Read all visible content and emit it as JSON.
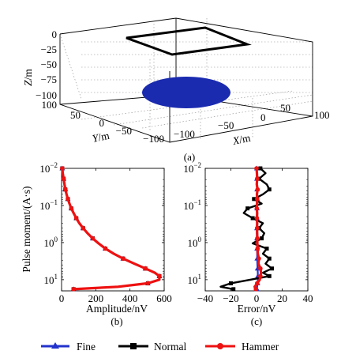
{
  "chart_data": [
    {
      "panel": "(a)",
      "type": "3d-scatter",
      "axes": {
        "x": {
          "label_var": "X",
          "label_unit": "/m",
          "ticks": [
            "−100",
            "−50",
            "0",
            "50",
            "100"
          ],
          "lim": [
            -100,
            100
          ]
        },
        "y": {
          "label_var": "Y",
          "label_unit": "/m",
          "ticks": [
            "100",
            "50",
            "0",
            "−50",
            "−100"
          ],
          "lim": [
            -100,
            100
          ]
        },
        "z": {
          "label_var": "Z",
          "label_unit": "/m",
          "ticks": [
            "0",
            "−25",
            "−50",
            "−75",
            "−100"
          ],
          "lim": [
            -100,
            0
          ]
        }
      },
      "objects": [
        {
          "kind": "square_loop",
          "z": 0,
          "x_range": [
            -50,
            50
          ],
          "y_range": [
            -50,
            50
          ],
          "color": "#000000"
        },
        {
          "kind": "disk",
          "z": -100,
          "radius": 50,
          "color": "#1a2bb0"
        }
      ],
      "grid": true
    },
    {
      "panel": "(b)",
      "type": "line",
      "xlabel": "Amplitude/nV",
      "ylabel": "Pulse moment/(A·s)",
      "xlim": [
        0,
        600
      ],
      "ylim_log": [
        0.01,
        20
      ],
      "y_reversed": true,
      "x_ticks": [
        "0",
        "200",
        "400",
        "600"
      ],
      "y_ticks": [
        {
          "base": "10",
          "exp": "−2",
          "value": 0.01
        },
        {
          "base": "10",
          "exp": "−1",
          "value": 0.1
        },
        {
          "base": "10",
          "exp": "0",
          "value": 1
        },
        {
          "base": "10",
          "exp": "1",
          "value": 10
        }
      ],
      "q": [
        0.01,
        0.0135,
        0.019,
        0.027,
        0.037,
        0.05,
        0.067,
        0.089,
        0.12,
        0.16,
        0.22,
        0.3,
        0.41,
        0.56,
        0.77,
        1.05,
        1.45,
        2.0,
        2.7,
        3.7,
        5.0,
        6.5,
        8.0,
        10.0,
        12.5,
        15.5,
        18.0
      ],
      "series": [
        {
          "name": "Fine",
          "color": "#2233cc",
          "marker": "triangle",
          "values": [
            4,
            7,
            12,
            17,
            22,
            29,
            37,
            46,
            57,
            70,
            86,
            104,
            126,
            152,
            182,
            216,
            256,
            305,
            360,
            425,
            490,
            545,
            572,
            572,
            505,
            330,
            70
          ]
        },
        {
          "name": "Normal",
          "color": "#000000",
          "marker": "square",
          "values": [
            4,
            7,
            12,
            17,
            22,
            29,
            37,
            46,
            57,
            70,
            86,
            104,
            126,
            152,
            182,
            216,
            256,
            305,
            360,
            425,
            490,
            545,
            572,
            572,
            505,
            330,
            70
          ]
        },
        {
          "name": "Hammer",
          "color": "#ee1111",
          "marker": "circle",
          "values": [
            4,
            7,
            12,
            17,
            22,
            29,
            37,
            46,
            57,
            70,
            86,
            104,
            126,
            152,
            182,
            216,
            256,
            305,
            360,
            425,
            490,
            545,
            572,
            572,
            505,
            330,
            70
          ]
        }
      ]
    },
    {
      "panel": "(c)",
      "type": "line",
      "xlabel": "Error/nV",
      "ylabel": "",
      "xlim": [
        -40,
        40
      ],
      "ylim_log": [
        0.01,
        20
      ],
      "y_reversed": true,
      "x_ticks": [
        "−40",
        "−20",
        "0",
        "20",
        "40"
      ],
      "y_ticks": [
        {
          "base": "10",
          "exp": "−2",
          "value": 0.01
        },
        {
          "base": "10",
          "exp": "−1",
          "value": 0.1
        },
        {
          "base": "10",
          "exp": "0",
          "value": 1
        },
        {
          "base": "10",
          "exp": "1",
          "value": 10
        }
      ],
      "q": [
        0.01,
        0.0135,
        0.019,
        0.027,
        0.037,
        0.05,
        0.067,
        0.089,
        0.12,
        0.16,
        0.22,
        0.3,
        0.41,
        0.56,
        0.77,
        1.05,
        1.45,
        2.0,
        2.7,
        3.7,
        5.0,
        6.5,
        8.0,
        10.0,
        12.5,
        15.5,
        18.0
      ],
      "series": [
        {
          "name": "Fine",
          "color": "#2233cc",
          "marker": "triangle",
          "values": [
            0.2,
            0.2,
            0.3,
            0.3,
            0.4,
            0.4,
            0.5,
            0.4,
            0.4,
            0.3,
            0.3,
            0.3,
            0.3,
            0.2,
            0.3,
            0.3,
            0.4,
            0.5,
            0.5,
            0.6,
            0.8,
            1.0,
            1.0,
            1.0,
            0.8,
            0.5,
            0.3
          ]
        },
        {
          "name": "Normal",
          "color": "#000000",
          "marker": "square",
          "values": [
            3,
            7,
            2,
            8,
            10,
            5,
            -2,
            4,
            -7,
            -10,
            -3,
            5,
            2,
            6,
            4,
            -3,
            8,
            5,
            10,
            7,
            12,
            5,
            10,
            -5,
            -20,
            -28,
            -18
          ]
        },
        {
          "name": "Hammer",
          "color": "#ee1111",
          "marker": "circle",
          "values": [
            0,
            0.3,
            0.5,
            0.2,
            0.8,
            0.3,
            0.5,
            0.4,
            0.2,
            0.5,
            0.3,
            0.5,
            0.4,
            0.5,
            0.6,
            0.6,
            0.8,
            1.0,
            1.8,
            1.5,
            3.0,
            3.5,
            3.0,
            2.5,
            0.5,
            -1.5,
            -0.5
          ]
        }
      ]
    }
  ],
  "captions": {
    "a": "(a)",
    "b": "(b)",
    "c": "(c)"
  },
  "legend": [
    {
      "name": "Fine",
      "color": "#2233cc",
      "marker": "triangle"
    },
    {
      "name": "Normal",
      "color": "#000000",
      "marker": "square"
    },
    {
      "name": "Hammer",
      "color": "#ee1111",
      "marker": "circle"
    }
  ]
}
